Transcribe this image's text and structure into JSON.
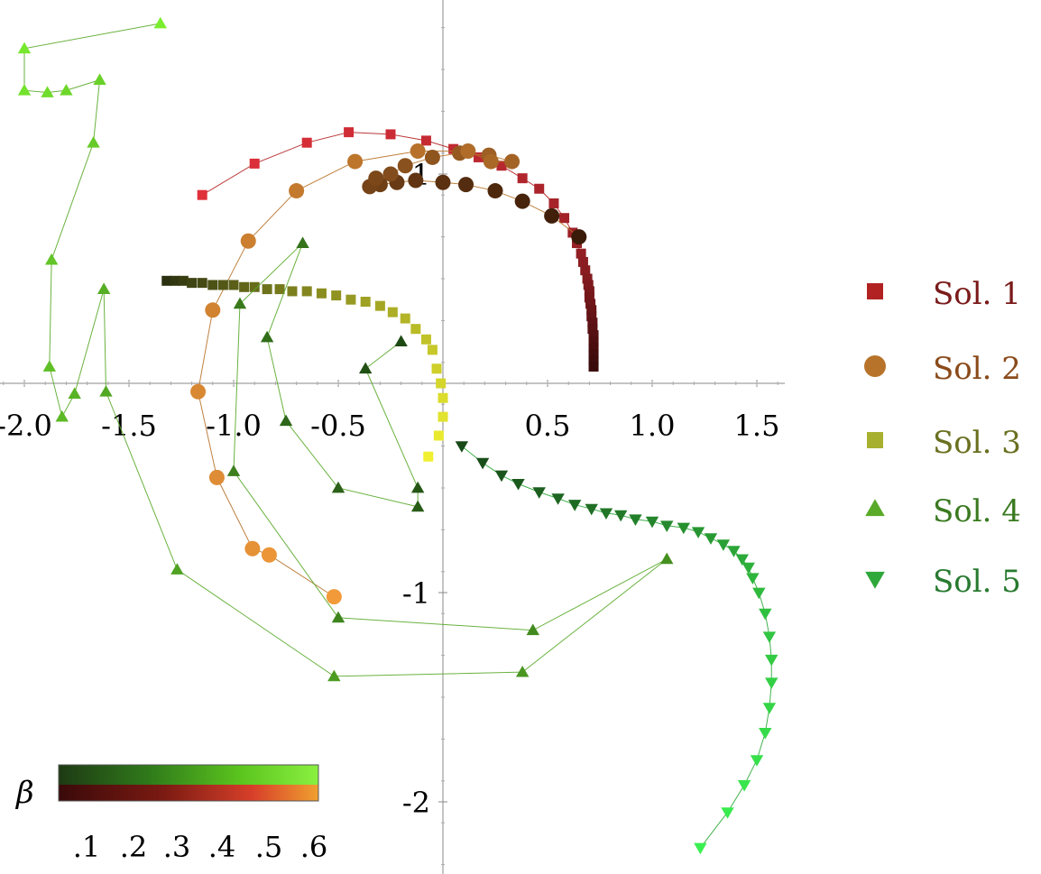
{
  "chart_data": {
    "type": "scatter",
    "title": "",
    "xlabel": "",
    "ylabel": "",
    "xlim": [
      -2.1,
      1.65
    ],
    "ylim": [
      -2.3,
      1.8
    ],
    "x_ticks": [
      -2.0,
      -1.5,
      -1.0,
      -0.5,
      0.5,
      1.0,
      1.5
    ],
    "x_tick_labels": [
      "-2.0",
      "-1.5",
      "-1.0",
      "-0.5",
      "0.5",
      "1.0",
      "1.5"
    ],
    "y_ticks": [
      -2,
      -1,
      1
    ],
    "y_tick_labels": [
      "-2",
      "-1",
      "1"
    ],
    "grid": false,
    "legend_position": "right",
    "colorbar": {
      "label": "β",
      "ticks": [
        ".1",
        ".2",
        ".3",
        ".4",
        ".5",
        ".6"
      ],
      "colors_top": [
        "#1e3a14",
        "#2f7a1a",
        "#5bc41e",
        "#9fe84a"
      ],
      "colors_bottom": [
        "#3a0a0a",
        "#8a1a12",
        "#e0502a",
        "#f29a3a"
      ]
    },
    "series": [
      {
        "name": "Sol. 1",
        "marker": "square",
        "color": "#b22222",
        "legend_text_color": "#7a1a1a",
        "dark_color": "#3a0a0a",
        "light_color": "#e0303a",
        "points": [
          [
            -1.15,
            0.9
          ],
          [
            -0.9,
            1.05
          ],
          [
            -0.65,
            1.15
          ],
          [
            -0.45,
            1.2
          ],
          [
            -0.25,
            1.19
          ],
          [
            -0.08,
            1.16
          ],
          [
            0.05,
            1.12
          ],
          [
            0.17,
            1.08
          ],
          [
            0.28,
            1.04
          ],
          [
            0.38,
            0.98
          ],
          [
            0.46,
            0.93
          ],
          [
            0.53,
            0.86
          ],
          [
            0.58,
            0.79
          ],
          [
            0.62,
            0.72
          ],
          [
            0.64,
            0.67
          ],
          [
            0.66,
            0.62
          ],
          [
            0.67,
            0.58
          ],
          [
            0.68,
            0.54
          ],
          [
            0.69,
            0.5
          ],
          [
            0.695,
            0.47
          ],
          [
            0.7,
            0.44
          ],
          [
            0.7,
            0.41
          ],
          [
            0.705,
            0.38
          ],
          [
            0.71,
            0.35
          ],
          [
            0.71,
            0.32
          ],
          [
            0.715,
            0.29
          ],
          [
            0.715,
            0.26
          ],
          [
            0.72,
            0.23
          ],
          [
            0.72,
            0.2
          ],
          [
            0.72,
            0.17
          ],
          [
            0.72,
            0.14
          ],
          [
            0.72,
            0.11
          ],
          [
            0.72,
            0.08
          ]
        ]
      },
      {
        "name": "Sol. 2",
        "marker": "circle",
        "color": "#b8732a",
        "legend_text_color": "#8a4a1a",
        "dark_color": "#3a1a08",
        "light_color": "#f29a3a",
        "points": [
          [
            0.65,
            0.7
          ],
          [
            0.52,
            0.8
          ],
          [
            0.38,
            0.87
          ],
          [
            0.25,
            0.92
          ],
          [
            0.11,
            0.95
          ],
          [
            0.0,
            0.96
          ],
          [
            -0.13,
            0.97
          ],
          [
            -0.22,
            0.96
          ],
          [
            -0.3,
            0.95
          ],
          [
            -0.35,
            0.94
          ],
          [
            -0.32,
            0.98
          ],
          [
            -0.25,
            1.0
          ],
          [
            -0.18,
            1.04
          ],
          [
            -0.05,
            1.08
          ],
          [
            0.08,
            1.1
          ],
          [
            0.22,
            1.09
          ],
          [
            0.33,
            1.06
          ],
          [
            0.23,
            1.06
          ],
          [
            0.12,
            1.11
          ],
          [
            -0.12,
            1.11
          ],
          [
            -0.42,
            1.06
          ],
          [
            -0.7,
            0.92
          ],
          [
            -0.93,
            0.68
          ],
          [
            -1.1,
            0.35
          ],
          [
            -1.17,
            -0.04
          ],
          [
            -1.08,
            -0.45
          ],
          [
            -0.91,
            -0.79
          ],
          [
            -0.83,
            -0.82
          ],
          [
            -0.52,
            -1.02
          ]
        ]
      },
      {
        "name": "Sol. 3",
        "marker": "square",
        "color": "#a8b030",
        "legend_text_color": "#6a7020",
        "dark_color": "#2a3010",
        "light_color": "#f0f030",
        "points": [
          [
            -1.32,
            0.49
          ],
          [
            -1.28,
            0.49
          ],
          [
            -1.24,
            0.49
          ],
          [
            -1.2,
            0.48
          ],
          [
            -1.15,
            0.48
          ],
          [
            -1.1,
            0.47
          ],
          [
            -1.05,
            0.47
          ],
          [
            -1.0,
            0.47
          ],
          [
            -0.95,
            0.46
          ],
          [
            -0.9,
            0.46
          ],
          [
            -0.84,
            0.45
          ],
          [
            -0.78,
            0.45
          ],
          [
            -0.72,
            0.44
          ],
          [
            -0.65,
            0.44
          ],
          [
            -0.58,
            0.43
          ],
          [
            -0.51,
            0.42
          ],
          [
            -0.44,
            0.4
          ],
          [
            -0.37,
            0.39
          ],
          [
            -0.3,
            0.37
          ],
          [
            -0.24,
            0.34
          ],
          [
            -0.18,
            0.31
          ],
          [
            -0.13,
            0.26
          ],
          [
            -0.08,
            0.21
          ],
          [
            -0.05,
            0.16
          ],
          [
            -0.03,
            0.07
          ],
          [
            -0.01,
            0.0
          ],
          [
            0.0,
            -0.07
          ],
          [
            0.0,
            -0.16
          ],
          [
            -0.02,
            -0.25
          ],
          [
            -0.07,
            -0.35
          ]
        ]
      },
      {
        "name": "Sol. 4",
        "marker": "triangle-up",
        "color": "#5aaa2a",
        "legend_text_color": "#3a7a20",
        "dark_color": "#1e4a14",
        "light_color": "#7aee2e",
        "points": [
          [
            -0.2,
            0.2
          ],
          [
            -0.37,
            0.07
          ],
          [
            -0.12,
            -0.5
          ],
          [
            -0.12,
            -0.59
          ],
          [
            -0.5,
            -0.5
          ],
          [
            -0.75,
            -0.18
          ],
          [
            -0.84,
            0.22
          ],
          [
            -0.67,
            0.67
          ],
          [
            -0.97,
            0.38
          ],
          [
            -1.0,
            -0.42
          ],
          [
            -0.5,
            -1.12
          ],
          [
            0.43,
            -1.18
          ],
          [
            1.07,
            -0.84
          ],
          [
            0.38,
            -1.38
          ],
          [
            -0.52,
            -1.4
          ],
          [
            -1.27,
            -0.89
          ],
          [
            -1.61,
            -0.04
          ],
          [
            -1.62,
            0.45
          ],
          [
            -1.76,
            -0.05
          ],
          [
            -1.82,
            -0.16
          ],
          [
            -1.88,
            0.08
          ],
          [
            -1.87,
            0.59
          ],
          [
            -1.67,
            1.15
          ],
          [
            -1.64,
            1.45
          ],
          [
            -1.8,
            1.4
          ],
          [
            -1.89,
            1.39
          ],
          [
            -2.0,
            1.4
          ],
          [
            -2.0,
            1.6
          ],
          [
            -1.35,
            1.72
          ]
        ]
      },
      {
        "name": "Sol. 5",
        "marker": "triangle-down",
        "color": "#2ea83a",
        "legend_text_color": "#287a30",
        "dark_color": "#184a18",
        "light_color": "#3af050",
        "points": [
          [
            0.09,
            -0.3
          ],
          [
            0.19,
            -0.38
          ],
          [
            0.28,
            -0.44
          ],
          [
            0.36,
            -0.48
          ],
          [
            0.46,
            -0.52
          ],
          [
            0.55,
            -0.55
          ],
          [
            0.63,
            -0.58
          ],
          [
            0.71,
            -0.6
          ],
          [
            0.78,
            -0.62
          ],
          [
            0.85,
            -0.63
          ],
          [
            0.92,
            -0.65
          ],
          [
            1.0,
            -0.66
          ],
          [
            1.07,
            -0.68
          ],
          [
            1.15,
            -0.69
          ],
          [
            1.22,
            -0.71
          ],
          [
            1.28,
            -0.74
          ],
          [
            1.34,
            -0.77
          ],
          [
            1.39,
            -0.8
          ],
          [
            1.43,
            -0.84
          ],
          [
            1.46,
            -0.88
          ],
          [
            1.48,
            -0.93
          ],
          [
            1.51,
            -1.0
          ],
          [
            1.54,
            -1.1
          ],
          [
            1.56,
            -1.21
          ],
          [
            1.57,
            -1.32
          ],
          [
            1.57,
            -1.43
          ],
          [
            1.56,
            -1.55
          ],
          [
            1.54,
            -1.67
          ],
          [
            1.5,
            -1.8
          ],
          [
            1.44,
            -1.92
          ],
          [
            1.36,
            -2.05
          ],
          [
            1.23,
            -2.22
          ]
        ]
      }
    ]
  }
}
